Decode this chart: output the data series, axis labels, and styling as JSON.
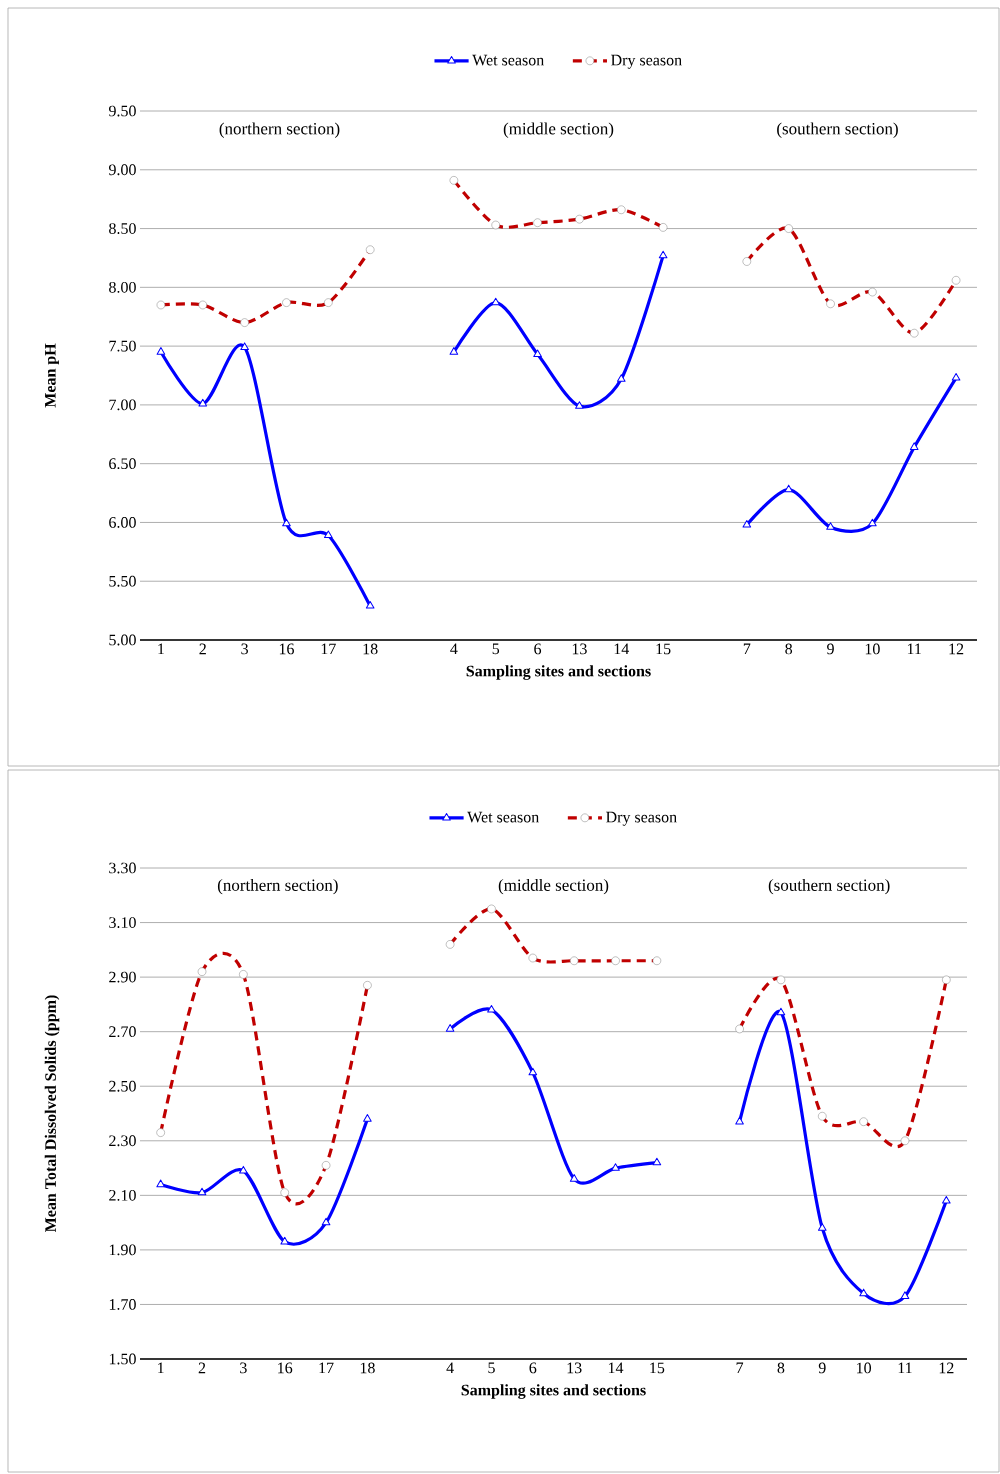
{
  "chart_data": [
    {
      "type": "line",
      "xlabel": "Sampling sites and sections",
      "ylabel": "Mean pH",
      "categories": [
        "1",
        "2",
        "3",
        "16",
        "17",
        "18",
        null,
        "4",
        "5",
        "6",
        "13",
        "14",
        "15",
        null,
        "7",
        "8",
        "9",
        "10",
        "11",
        "12"
      ],
      "ylim": [
        5.0,
        9.5
      ],
      "yticks": [
        {
          "value": 5.0,
          "label": "5.00"
        },
        {
          "value": 5.5,
          "label": "5.50"
        },
        {
          "value": 6.0,
          "label": "6.00"
        },
        {
          "value": 6.5,
          "label": "6.50"
        },
        {
          "value": 7.0,
          "label": "7.00"
        },
        {
          "value": 7.5,
          "label": "7.50"
        },
        {
          "value": 8.0,
          "label": "8.00"
        },
        {
          "value": 8.5,
          "label": "8.50"
        },
        {
          "value": 9.0,
          "label": "9.00"
        },
        {
          "value": 9.5,
          "label": "9.50"
        }
      ],
      "grid": "y",
      "legend": "top",
      "annotations": [
        "(northern section)",
        "(middle section)",
        "(southern section)"
      ],
      "series": [
        {
          "name": "Wet season",
          "color": "#0000ff",
          "marker": "triangle",
          "line_style": "solid",
          "values": [
            7.45,
            7.01,
            7.49,
            5.99,
            5.89,
            5.29,
            null,
            7.45,
            7.87,
            7.43,
            6.99,
            7.22,
            8.27,
            null,
            5.98,
            6.28,
            5.96,
            5.99,
            6.64,
            7.23
          ]
        },
        {
          "name": "Dry season",
          "color": "#c00000",
          "marker": "circle",
          "line_style": "dashed",
          "values": [
            7.85,
            7.85,
            7.7,
            7.87,
            7.87,
            8.32,
            null,
            8.91,
            8.53,
            8.55,
            8.58,
            8.66,
            8.51,
            null,
            8.22,
            8.5,
            7.86,
            7.96,
            7.61,
            8.06
          ]
        }
      ]
    },
    {
      "type": "line",
      "xlabel": "Sampling sites and sections",
      "ylabel": "Mean Total Dissolved Solids (ppm)",
      "categories": [
        "1",
        "2",
        "3",
        "16",
        "17",
        "18",
        null,
        "4",
        "5",
        "6",
        "13",
        "14",
        "15",
        null,
        "7",
        "8",
        "9",
        "10",
        "11",
        "12"
      ],
      "ylim": [
        1.5,
        3.3
      ],
      "yticks": [
        {
          "value": 1.5,
          "label": "1.50"
        },
        {
          "value": 1.7,
          "label": "1.70"
        },
        {
          "value": 1.9,
          "label": "1.90"
        },
        {
          "value": 2.1,
          "label": "2.10"
        },
        {
          "value": 2.3,
          "label": "2.30"
        },
        {
          "value": 2.5,
          "label": "2.50"
        },
        {
          "value": 2.7,
          "label": "2.70"
        },
        {
          "value": 2.9,
          "label": "2.90"
        },
        {
          "value": 3.1,
          "label": "3.10"
        },
        {
          "value": 3.3,
          "label": "3.30"
        }
      ],
      "grid": "y",
      "legend": "top",
      "annotations": [
        "(northern section)",
        "(middle section)",
        "(southern section)"
      ],
      "series": [
        {
          "name": "Wet season",
          "color": "#0000ff",
          "marker": "triangle",
          "line_style": "solid",
          "values": [
            2.14,
            2.11,
            2.19,
            1.93,
            2.0,
            2.38,
            null,
            2.71,
            2.78,
            2.55,
            2.16,
            2.2,
            2.22,
            null,
            2.37,
            2.77,
            1.98,
            1.74,
            1.73,
            2.08
          ]
        },
        {
          "name": "Dry season",
          "color": "#c00000",
          "marker": "circle",
          "line_style": "dashed",
          "values": [
            2.33,
            2.92,
            2.91,
            2.11,
            2.21,
            2.87,
            null,
            3.02,
            3.15,
            2.97,
            2.96,
            2.96,
            2.96,
            null,
            2.71,
            2.89,
            2.39,
            2.37,
            2.3,
            2.89
          ]
        }
      ]
    }
  ]
}
